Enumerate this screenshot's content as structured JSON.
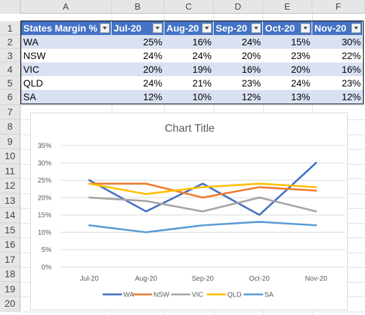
{
  "columns": [
    "A",
    "B",
    "C",
    "D",
    "E",
    "F"
  ],
  "rows": [
    "1",
    "2",
    "3",
    "4",
    "5",
    "6",
    "7",
    "8",
    "9",
    "10",
    "11",
    "12",
    "13",
    "14",
    "15",
    "16",
    "17",
    "18",
    "19",
    "20"
  ],
  "table": {
    "headers": [
      "States Margin %",
      "Jul-20",
      "Aug-20",
      "Sep-20",
      "Oct-20",
      "Nov-20"
    ],
    "rows": [
      [
        "WA",
        "25%",
        "16%",
        "24%",
        "15%",
        "30%"
      ],
      [
        "NSW",
        "24%",
        "24%",
        "20%",
        "23%",
        "22%"
      ],
      [
        "VIC",
        "20%",
        "19%",
        "16%",
        "20%",
        "16%"
      ],
      [
        "QLD",
        "24%",
        "21%",
        "23%",
        "24%",
        "23%"
      ],
      [
        "SA",
        "12%",
        "10%",
        "12%",
        "13%",
        "12%"
      ]
    ]
  },
  "chart_data": {
    "type": "line",
    "title": "Chart Title",
    "categories": [
      "Jul-20",
      "Aug-20",
      "Sep-20",
      "Oct-20",
      "Nov-20"
    ],
    "series": [
      {
        "name": "WA",
        "values": [
          25,
          16,
          24,
          15,
          30
        ],
        "color": "#4472c4"
      },
      {
        "name": "NSW",
        "values": [
          24,
          24,
          20,
          23,
          22
        ],
        "color": "#ed7d31"
      },
      {
        "name": "VIC",
        "values": [
          20,
          19,
          16,
          20,
          16
        ],
        "color": "#a5a5a5"
      },
      {
        "name": "QLD",
        "values": [
          24,
          21,
          23,
          24,
          23
        ],
        "color": "#ffc000"
      },
      {
        "name": "SA",
        "values": [
          12,
          10,
          12,
          13,
          12
        ],
        "color": "#5b9bd5"
      }
    ],
    "yticks": [
      "0%",
      "5%",
      "10%",
      "15%",
      "20%",
      "25%",
      "30%",
      "35%"
    ],
    "ylim": [
      0,
      35
    ],
    "grid": true,
    "legend": "bottom"
  },
  "colors": {
    "table_header": "#4472c4",
    "band": "#d9e1f2"
  }
}
